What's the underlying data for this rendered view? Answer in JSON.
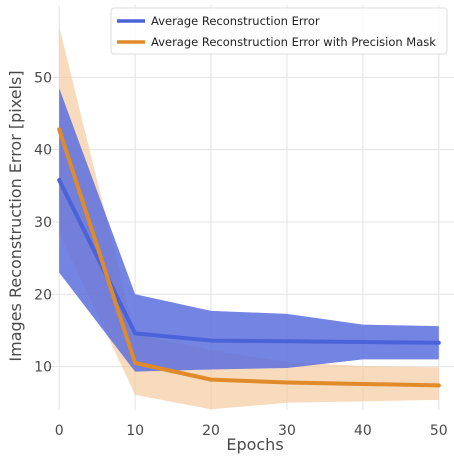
{
  "chart_data": {
    "type": "line",
    "title": "",
    "xlabel": "Epochs",
    "ylabel": "Images Reconstruction Error [pixels]",
    "xlim": [
      -2,
      52
    ],
    "ylim": [
      4,
      60
    ],
    "xticks": [
      0,
      10,
      20,
      30,
      40,
      50
    ],
    "yticks": [
      10,
      20,
      30,
      40,
      50
    ],
    "grid": true,
    "legend_position": "top-right",
    "x": [
      0,
      10,
      20,
      30,
      40,
      50
    ],
    "series": [
      {
        "name": "Average Reconstruction Error",
        "color": "#4a63d8",
        "band_color": "#5c6fde",
        "band_opacity": 0.85,
        "values": [
          35.8,
          14.6,
          13.6,
          13.5,
          13.4,
          13.3
        ],
        "band_upper": [
          48.5,
          20.0,
          17.7,
          17.3,
          15.8,
          15.6
        ],
        "band_lower": [
          23.0,
          9.3,
          9.6,
          9.8,
          11.0,
          11.0
        ]
      },
      {
        "name": "Average Reconstruction Error with Precision Mask",
        "color": "#e08a2a",
        "band_color": "#f5c89a",
        "band_opacity": 0.65,
        "values": [
          42.8,
          10.5,
          8.2,
          7.8,
          7.6,
          7.4
        ],
        "band_upper": [
          57.0,
          14.5,
          12.3,
          10.6,
          10.1,
          9.9
        ],
        "band_lower": [
          28.5,
          6.1,
          4.1,
          5.0,
          5.2,
          5.4
        ]
      }
    ]
  }
}
